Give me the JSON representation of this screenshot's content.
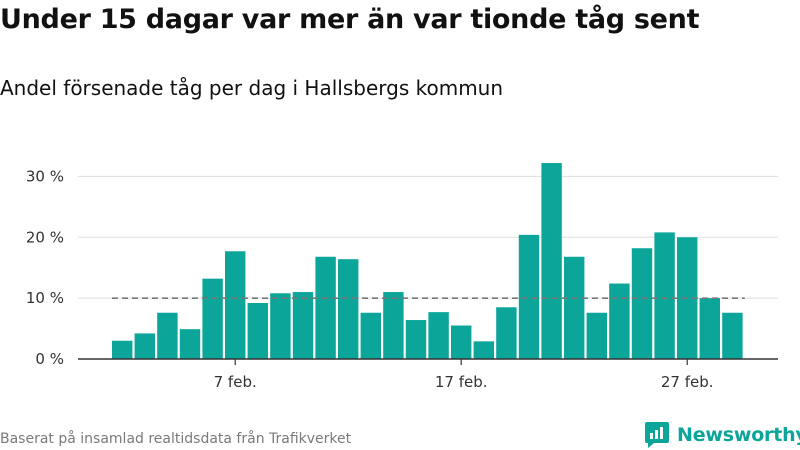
{
  "title": "Under 15 dagar var mer än var tionde tåg sent",
  "subtitle": "Andel försenade tåg per dag i Hallsbergs kommun",
  "footer": "Baserat på insamlad realtidsdata från Trafikverket",
  "brand": {
    "name": "Newsworthy",
    "icon": "newsworthy-logo-icon"
  },
  "colors": {
    "bar": "#0ba59a",
    "reference": "#777777",
    "grid": "#dddddd",
    "axis": "#333333",
    "brand": "#0ba59a"
  },
  "chart_data": {
    "type": "bar",
    "title": "",
    "xlabel": "",
    "ylabel": "",
    "x": [
      "2024-02-02",
      "2024-02-03",
      "2024-02-04",
      "2024-02-05",
      "2024-02-06",
      "2024-02-07",
      "2024-02-08",
      "2024-02-09",
      "2024-02-10",
      "2024-02-11",
      "2024-02-12",
      "2024-02-13",
      "2024-02-14",
      "2024-02-15",
      "2024-02-16",
      "2024-02-17",
      "2024-02-18",
      "2024-02-19",
      "2024-02-20",
      "2024-02-21",
      "2024-02-22",
      "2024-02-23",
      "2024-02-24",
      "2024-02-25",
      "2024-02-26",
      "2024-02-27",
      "2024-02-28",
      "2024-02-29"
    ],
    "values": [
      3.0,
      4.2,
      7.6,
      4.9,
      13.2,
      17.7,
      9.2,
      10.8,
      11.0,
      16.8,
      16.4,
      7.6,
      11.0,
      6.4,
      7.7,
      5.5,
      2.9,
      8.5,
      20.4,
      32.2,
      16.8,
      7.6,
      12.4,
      18.2,
      20.8,
      20.0,
      10.0,
      7.6
    ],
    "reference_line": 10,
    "ylim": [
      0,
      35
    ],
    "yticks": [
      {
        "value": 0,
        "label": "0 %"
      },
      {
        "value": 10,
        "label": "10 %"
      },
      {
        "value": 20,
        "label": "20 %"
      },
      {
        "value": 30,
        "label": "30 %"
      }
    ],
    "xticks": [
      {
        "x": "2024-02-07",
        "label": "7 feb."
      },
      {
        "x": "2024-02-17",
        "label": "17 feb."
      },
      {
        "x": "2024-02-27",
        "label": "27 feb."
      }
    ],
    "grid": true,
    "legend": "none"
  }
}
